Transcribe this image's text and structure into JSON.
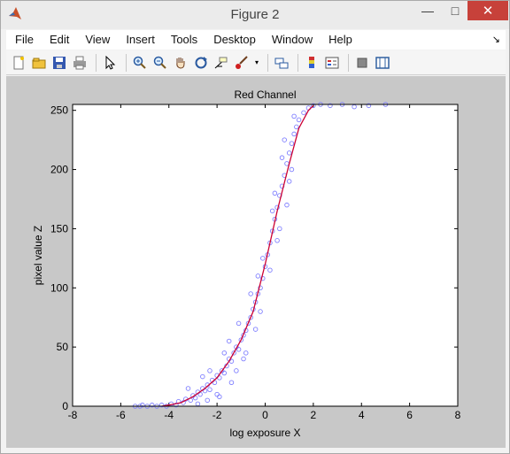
{
  "window": {
    "title": "Figure 2",
    "minimize": "—",
    "maximize": "□",
    "close": "✕"
  },
  "menu": [
    "File",
    "Edit",
    "View",
    "Insert",
    "Tools",
    "Desktop",
    "Window",
    "Help"
  ],
  "toolbar_icons": [
    "new-figure-icon",
    "open-file-icon",
    "save-icon",
    "print-icon",
    "pointer-icon",
    "zoom-in-icon",
    "zoom-out-icon",
    "pan-icon",
    "rotate-3d-icon",
    "data-cursor-icon",
    "brush-icon",
    "link-plot-icon",
    "colorbar-icon",
    "legend-icon",
    "hide-plot-tools-icon",
    "show-plot-tools-icon"
  ],
  "chart_data": {
    "type": "scatter",
    "title": "Red Channel",
    "xlabel": "log exposure X",
    "ylabel": "pixel value Z",
    "xlim": [
      -8,
      8
    ],
    "ylim": [
      0,
      255
    ],
    "xticks": [
      -8,
      -6,
      -4,
      -2,
      0,
      2,
      4,
      6,
      8
    ],
    "yticks": [
      0,
      50,
      100,
      150,
      200,
      250
    ],
    "colors": {
      "scatter": "#8080ff",
      "curve": "#cc0033"
    },
    "series": [
      {
        "marker": "circle",
        "points": [
          [
            -5.4,
            0
          ],
          [
            -5.2,
            0
          ],
          [
            -5.1,
            1
          ],
          [
            -4.9,
            0
          ],
          [
            -4.7,
            1
          ],
          [
            -4.5,
            0
          ],
          [
            -4.3,
            1
          ],
          [
            -4.1,
            0
          ],
          [
            -3.9,
            2
          ],
          [
            -3.7,
            1
          ],
          [
            -3.6,
            4
          ],
          [
            -3.4,
            3
          ],
          [
            -3.3,
            6
          ],
          [
            -3.1,
            5
          ],
          [
            -3.0,
            9
          ],
          [
            -2.9,
            7
          ],
          [
            -2.8,
            12
          ],
          [
            -2.7,
            10
          ],
          [
            -2.6,
            15
          ],
          [
            -2.5,
            13
          ],
          [
            -2.4,
            18
          ],
          [
            -2.3,
            14
          ],
          [
            -2.2,
            22
          ],
          [
            -2.1,
            20
          ],
          [
            -2.0,
            26
          ],
          [
            -1.9,
            24
          ],
          [
            -1.8,
            30
          ],
          [
            -1.7,
            28
          ],
          [
            -1.6,
            34
          ],
          [
            -1.5,
            40
          ],
          [
            -1.4,
            38
          ],
          [
            -1.3,
            45
          ],
          [
            -1.2,
            50
          ],
          [
            -1.1,
            48
          ],
          [
            -1.0,
            56
          ],
          [
            -0.9,
            60
          ],
          [
            -0.8,
            64
          ],
          [
            -0.7,
            70
          ],
          [
            -0.6,
            75
          ],
          [
            -0.5,
            82
          ],
          [
            -0.4,
            88
          ],
          [
            -0.3,
            95
          ],
          [
            -0.2,
            100
          ],
          [
            -0.1,
            108
          ],
          [
            0.0,
            118
          ],
          [
            0.1,
            128
          ],
          [
            0.2,
            138
          ],
          [
            0.3,
            148
          ],
          [
            0.4,
            158
          ],
          [
            0.5,
            168
          ],
          [
            0.6,
            178
          ],
          [
            0.7,
            186
          ],
          [
            0.8,
            195
          ],
          [
            0.9,
            205
          ],
          [
            1.0,
            214
          ],
          [
            1.1,
            222
          ],
          [
            1.2,
            230
          ],
          [
            1.3,
            236
          ],
          [
            1.4,
            242
          ],
          [
            1.6,
            248
          ],
          [
            1.8,
            252
          ],
          [
            2.0,
            254
          ],
          [
            2.3,
            255
          ],
          [
            2.7,
            254
          ],
          [
            3.2,
            255
          ],
          [
            3.7,
            253
          ],
          [
            4.3,
            254
          ],
          [
            5.0,
            255
          ],
          [
            -2.3,
            30
          ],
          [
            -2.0,
            10
          ],
          [
            -1.7,
            45
          ],
          [
            -1.4,
            20
          ],
          [
            -1.1,
            70
          ],
          [
            -0.9,
            40
          ],
          [
            -0.6,
            95
          ],
          [
            -0.4,
            65
          ],
          [
            -0.1,
            125
          ],
          [
            0.2,
            115
          ],
          [
            0.4,
            180
          ],
          [
            0.6,
            150
          ],
          [
            0.8,
            225
          ],
          [
            1.0,
            190
          ],
          [
            1.2,
            245
          ],
          [
            0.9,
            170
          ],
          [
            0.3,
            165
          ],
          [
            -0.2,
            80
          ],
          [
            -1.5,
            55
          ],
          [
            -2.6,
            25
          ],
          [
            -3.2,
            15
          ],
          [
            -2.8,
            2
          ],
          [
            -1.9,
            8
          ],
          [
            0.7,
            210
          ],
          [
            1.1,
            200
          ],
          [
            0.5,
            140
          ],
          [
            -0.3,
            110
          ],
          [
            -0.8,
            45
          ],
          [
            -1.2,
            30
          ],
          [
            -2.4,
            5
          ]
        ]
      },
      {
        "style": "line",
        "points": [
          [
            -4.3,
            0
          ],
          [
            -4.0,
            1
          ],
          [
            -3.5,
            3
          ],
          [
            -3.0,
            8
          ],
          [
            -2.5,
            15
          ],
          [
            -2.0,
            24
          ],
          [
            -1.5,
            38
          ],
          [
            -1.0,
            56
          ],
          [
            -0.5,
            80
          ],
          [
            0.0,
            120
          ],
          [
            0.5,
            165
          ],
          [
            1.0,
            205
          ],
          [
            1.4,
            235
          ],
          [
            1.8,
            250
          ],
          [
            2.0,
            254
          ]
        ]
      }
    ]
  }
}
